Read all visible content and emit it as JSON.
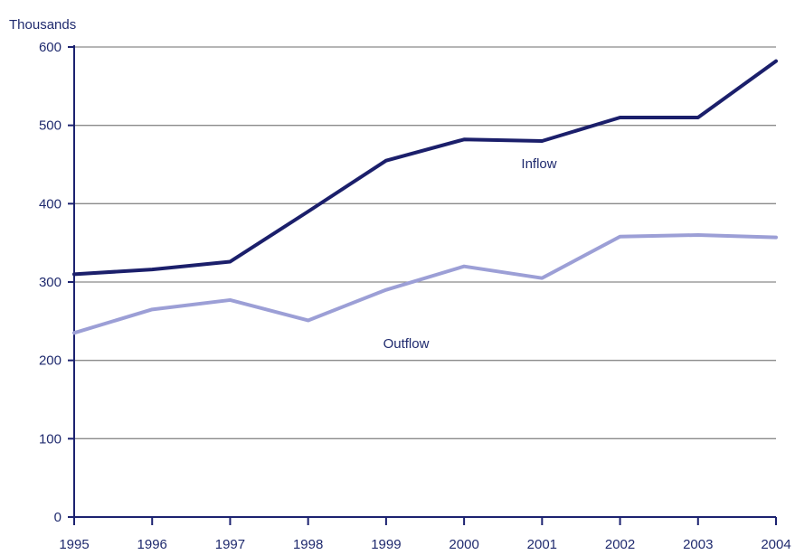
{
  "chart_data": {
    "type": "line",
    "unit_label": "Thousands",
    "x": [
      "1995",
      "1996",
      "1997",
      "1998",
      "1999",
      "2000",
      "2001",
      "2002",
      "2003",
      "2004"
    ],
    "y_ticks": [
      "0",
      "100",
      "200",
      "300",
      "400",
      "500",
      "600"
    ],
    "ylim": [
      0,
      600
    ],
    "grid": true,
    "series": [
      {
        "name": "Inflow",
        "color": "#1b1f6b",
        "values": [
          310,
          316,
          326,
          390,
          455,
          482,
          480,
          510,
          510,
          582
        ]
      },
      {
        "name": "Outflow",
        "color": "#9c9fd6",
        "values": [
          235,
          265,
          277,
          251,
          290,
          320,
          305,
          358,
          360,
          357
        ]
      }
    ]
  }
}
